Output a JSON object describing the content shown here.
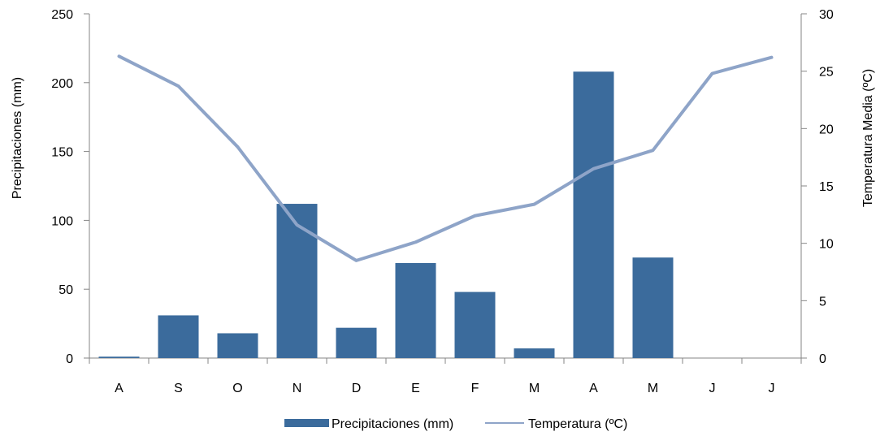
{
  "chart_data": {
    "type": "bar",
    "categories": [
      "A",
      "S",
      "O",
      "N",
      "D",
      "E",
      "F",
      "M",
      "A",
      "M",
      "J",
      "J"
    ],
    "series": [
      {
        "name": "Precipitaciones (mm)",
        "type": "bar",
        "axis": "left",
        "color": "#3b6b9c",
        "values": [
          1,
          31,
          18,
          112,
          22,
          69,
          48,
          7,
          208,
          73,
          0,
          0
        ]
      },
      {
        "name": "Temperatura (ºC)",
        "type": "line",
        "axis": "right",
        "color": "#8ea4c8",
        "values": [
          26.3,
          23.7,
          18.4,
          11.6,
          8.5,
          10.1,
          12.4,
          13.4,
          16.5,
          18.1,
          24.8,
          26.2
        ]
      }
    ],
    "ylabel": "Precipitaciones (mm)",
    "y2label": "Temperatura Media (ºC)",
    "ylim": [
      0,
      250
    ],
    "y2lim": [
      0,
      30
    ],
    "yticks": [
      0,
      50,
      100,
      150,
      200,
      250
    ],
    "y2ticks": [
      0,
      5,
      10,
      15,
      20,
      25,
      30
    ],
    "grid": false,
    "legend_position": "bottom",
    "legend": [
      "Precipitaciones (mm)",
      "Temperatura (ºC)"
    ]
  }
}
